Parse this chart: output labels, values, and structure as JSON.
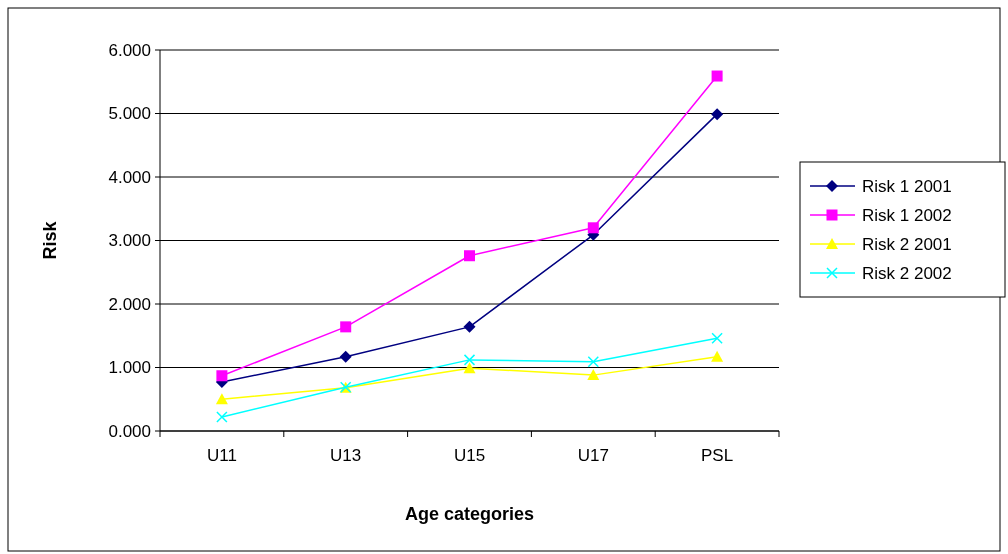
{
  "chart_data": {
    "type": "line",
    "xlabel": "Age categories",
    "ylabel": "Risk",
    "categories": [
      "U11",
      "U13",
      "U15",
      "U17",
      "PSL"
    ],
    "series": [
      {
        "name": "Risk 1 2001",
        "color": "#000080",
        "marker": "diamond",
        "values": [
          0.77,
          1.17,
          1.64,
          3.09,
          4.99
        ]
      },
      {
        "name": "Risk 1 2002",
        "color": "#ff00ff",
        "marker": "square",
        "values": [
          0.87,
          1.64,
          2.76,
          3.2,
          5.59
        ]
      },
      {
        "name": "Risk 2 2001",
        "color": "#ffff00",
        "marker": "triangle",
        "values": [
          0.5,
          0.68,
          0.99,
          0.88,
          1.17
        ]
      },
      {
        "name": "Risk 2 2002",
        "color": "#00ffff",
        "marker": "cross",
        "values": [
          0.22,
          0.69,
          1.12,
          1.09,
          1.46
        ]
      }
    ],
    "ylim": [
      0,
      6
    ],
    "yticks": [
      {
        "value": 0,
        "label": "0.000"
      },
      {
        "value": 1,
        "label": "1.000"
      },
      {
        "value": 2,
        "label": "2.000"
      },
      {
        "value": 3,
        "label": "3.000"
      },
      {
        "value": 4,
        "label": "4.000"
      },
      {
        "value": 5,
        "label": "5.000"
      },
      {
        "value": 6,
        "label": "6.000"
      }
    ],
    "grid": "y",
    "legend": "right"
  }
}
